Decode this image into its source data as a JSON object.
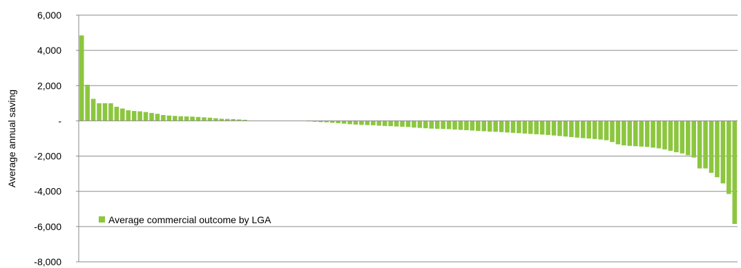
{
  "chart_data": {
    "type": "bar",
    "ylabel": "Average annual saving",
    "ylim": [
      -8000,
      6000
    ],
    "yticks": [
      {
        "value": 6000,
        "label": "6,000"
      },
      {
        "value": 4000,
        "label": "4,000"
      },
      {
        "value": 2000,
        "label": "2,000"
      },
      {
        "value": 0,
        "label": "-"
      },
      {
        "value": -2000,
        "label": "-2,000"
      },
      {
        "value": -4000,
        "label": "-4,000"
      },
      {
        "value": -6000,
        "label": "-6,000"
      },
      {
        "value": -8000,
        "label": "-8,000"
      }
    ],
    "grid": true,
    "legend_position": "bottom-left",
    "series": [
      {
        "name": "Average commercial outcome by LGA",
        "color": "#8cc63f",
        "values": [
          4850,
          2050,
          1250,
          1000,
          1000,
          1000,
          800,
          700,
          600,
          560,
          540,
          500,
          450,
          400,
          330,
          300,
          280,
          260,
          250,
          240,
          220,
          200,
          180,
          150,
          120,
          110,
          100,
          80,
          60,
          0,
          0,
          0,
          0,
          0,
          0,
          0,
          0,
          0,
          0,
          -30,
          -50,
          -70,
          -80,
          -110,
          -130,
          -160,
          -190,
          -210,
          -230,
          -240,
          -250,
          -270,
          -290,
          -300,
          -320,
          -330,
          -350,
          -380,
          -400,
          -420,
          -440,
          -450,
          -460,
          -470,
          -490,
          -510,
          -530,
          -550,
          -570,
          -590,
          -610,
          -620,
          -640,
          -660,
          -680,
          -700,
          -720,
          -740,
          -760,
          -780,
          -800,
          -830,
          -860,
          -890,
          -920,
          -950,
          -980,
          -1000,
          -1030,
          -1060,
          -1100,
          -1200,
          -1330,
          -1390,
          -1420,
          -1440,
          -1460,
          -1480,
          -1520,
          -1560,
          -1620,
          -1700,
          -1780,
          -1850,
          -1950,
          -2080,
          -2700,
          -2700,
          -2950,
          -3200,
          -3550,
          -4150,
          -5850
        ]
      }
    ]
  }
}
